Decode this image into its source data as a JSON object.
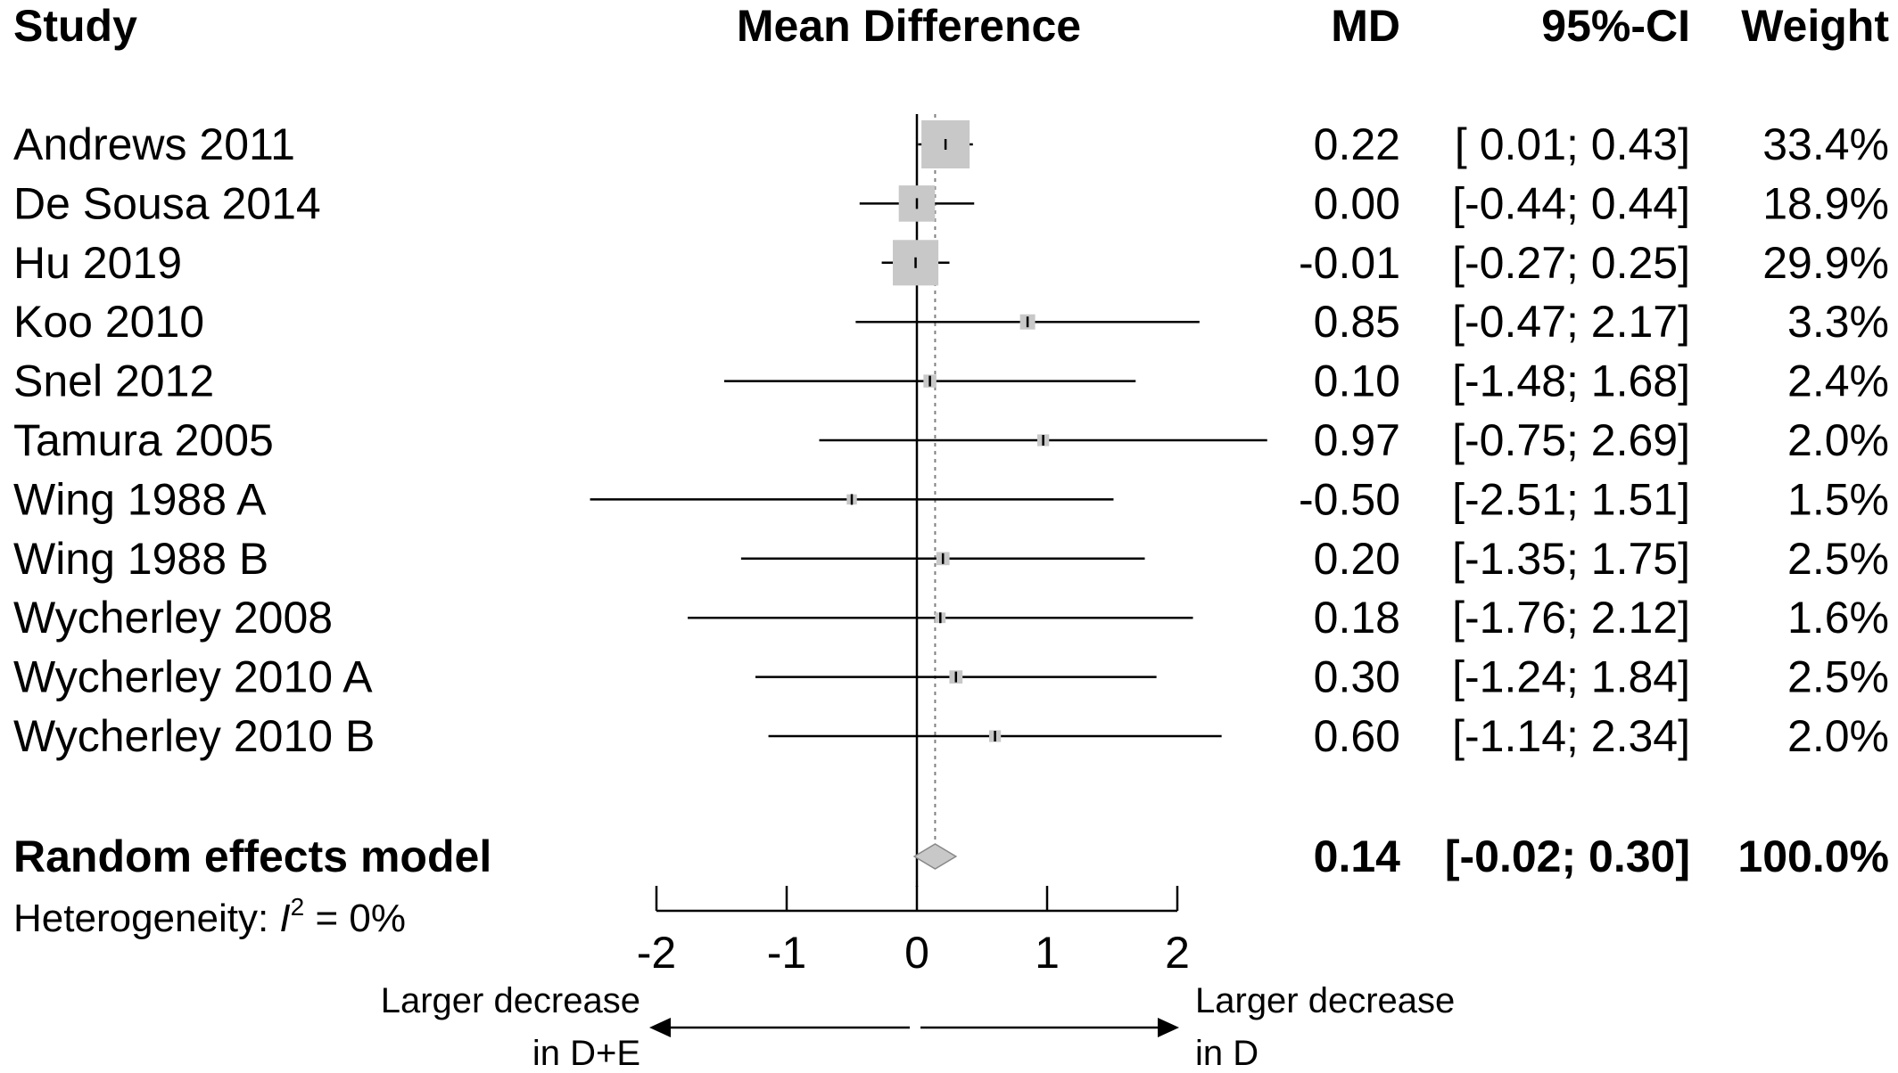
{
  "headers": {
    "study": "Study",
    "plot": "Mean Difference",
    "md": "MD",
    "ci": "95%-CI",
    "weight": "Weight"
  },
  "chart_data": {
    "type": "forest",
    "measure": "Mean Difference",
    "studies": [
      {
        "name": "Andrews 2011",
        "md": 0.22,
        "lower": 0.01,
        "upper": 0.43,
        "md_text": "0.22",
        "ci_text": "[ 0.01; 0.43]",
        "weight": 33.4,
        "weight_text": "33.4%"
      },
      {
        "name": "De Sousa 2014",
        "md": 0.0,
        "lower": -0.44,
        "upper": 0.44,
        "md_text": "0.00",
        "ci_text": "[-0.44; 0.44]",
        "weight": 18.9,
        "weight_text": "18.9%"
      },
      {
        "name": "Hu 2019",
        "md": -0.01,
        "lower": -0.27,
        "upper": 0.25,
        "md_text": "-0.01",
        "ci_text": "[-0.27; 0.25]",
        "weight": 29.9,
        "weight_text": "29.9%"
      },
      {
        "name": "Koo 2010",
        "md": 0.85,
        "lower": -0.47,
        "upper": 2.17,
        "md_text": "0.85",
        "ci_text": "[-0.47; 2.17]",
        "weight": 3.3,
        "weight_text": "3.3%"
      },
      {
        "name": "Snel 2012",
        "md": 0.1,
        "lower": -1.48,
        "upper": 1.68,
        "md_text": "0.10",
        "ci_text": "[-1.48; 1.68]",
        "weight": 2.4,
        "weight_text": "2.4%"
      },
      {
        "name": "Tamura 2005",
        "md": 0.97,
        "lower": -0.75,
        "upper": 2.69,
        "md_text": "0.97",
        "ci_text": "[-0.75; 2.69]",
        "weight": 2.0,
        "weight_text": "2.0%"
      },
      {
        "name": "Wing 1988  A",
        "md": -0.5,
        "lower": -2.51,
        "upper": 1.51,
        "md_text": "-0.50",
        "ci_text": "[-2.51; 1.51]",
        "weight": 1.5,
        "weight_text": "1.5%"
      },
      {
        "name": "Wing 1988  B",
        "md": 0.2,
        "lower": -1.35,
        "upper": 1.75,
        "md_text": "0.20",
        "ci_text": "[-1.35; 1.75]",
        "weight": 2.5,
        "weight_text": "2.5%"
      },
      {
        "name": "Wycherley 2008",
        "md": 0.18,
        "lower": -1.76,
        "upper": 2.12,
        "md_text": "0.18",
        "ci_text": "[-1.76; 2.12]",
        "weight": 1.6,
        "weight_text": "1.6%"
      },
      {
        "name": "Wycherley 2010 A",
        "md": 0.3,
        "lower": -1.24,
        "upper": 1.84,
        "md_text": "0.30",
        "ci_text": "[-1.24; 1.84]",
        "weight": 2.5,
        "weight_text": "2.5%"
      },
      {
        "name": "Wycherley 2010 B",
        "md": 0.6,
        "lower": -1.14,
        "upper": 2.34,
        "md_text": "0.60",
        "ci_text": "[-1.14; 2.34]",
        "weight": 2.0,
        "weight_text": "2.0%"
      }
    ],
    "pooled": {
      "name": "Random effects model",
      "md": 0.14,
      "lower": -0.02,
      "upper": 0.3,
      "md_text": "0.14",
      "ci_text": "[-0.02; 0.30]",
      "weight_text": "100.0%"
    },
    "heterogeneity": {
      "prefix": "Heterogeneity: ",
      "symbol": "I",
      "superscript": "2",
      "suffix": " = 0%"
    },
    "xlim": [
      -2,
      2
    ],
    "ticks": [
      -2,
      -1,
      0,
      1,
      2
    ],
    "tick_labels": [
      "-2",
      "-1",
      "0",
      "1",
      "2"
    ],
    "null_value": 0,
    "direction_labels": {
      "left": [
        "Larger decrease",
        "in D+E"
      ],
      "right": [
        "Larger decrease",
        "in D"
      ]
    },
    "colors": {
      "box": "#c8c8c8",
      "diamond": "#c8c8c8",
      "line": "#000000",
      "pooled_reference": "#808080"
    }
  }
}
